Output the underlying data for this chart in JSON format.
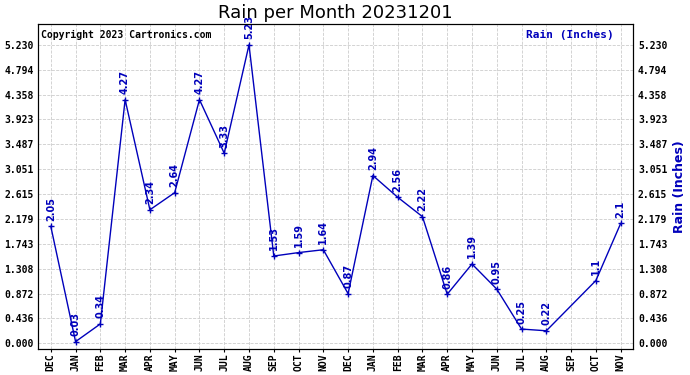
{
  "title": "Rain per Month 20231201",
  "ylabel": "Rain (Inches)",
  "copyright_text": "Copyright 2023 Cartronics.com",
  "x_labels": [
    "DEC",
    "JAN",
    "FEB",
    "MAR",
    "APR",
    "MAY",
    "JUN",
    "JUL",
    "AUG",
    "SEP",
    "OCT",
    "NOV",
    "DEC",
    "JAN",
    "FEB",
    "MAR",
    "APR",
    "MAY",
    "JUN",
    "JUL",
    "AUG",
    "SEP",
    "OCT",
    "NOV"
  ],
  "values": [
    2.05,
    0.03,
    0.34,
    4.27,
    2.34,
    2.64,
    4.27,
    3.33,
    5.23,
    1.53,
    1.59,
    1.64,
    0.87,
    2.94,
    2.56,
    2.22,
    0.86,
    1.39,
    0.95,
    0.25,
    0.22,
    1.1,
    2.1
  ],
  "x_indices": [
    0,
    1,
    2,
    3,
    4,
    5,
    6,
    7,
    8,
    9,
    10,
    11,
    12,
    13,
    14,
    15,
    16,
    17,
    18,
    19,
    20,
    22,
    23
  ],
  "yticks": [
    0.0,
    0.436,
    0.872,
    1.308,
    1.743,
    2.179,
    2.615,
    3.051,
    3.487,
    3.923,
    4.358,
    4.794,
    5.23
  ],
  "line_color": "#0000bb",
  "marker_color": "#000000",
  "grid_color": "#cccccc",
  "background_color": "#ffffff",
  "title_fontsize": 13,
  "annotation_fontsize": 7,
  "ylabel_color": "#0000bb",
  "copyright_color": "#000000",
  "copyright_fontsize": 7,
  "tick_fontsize": 7,
  "ylabel_fontsize": 9
}
